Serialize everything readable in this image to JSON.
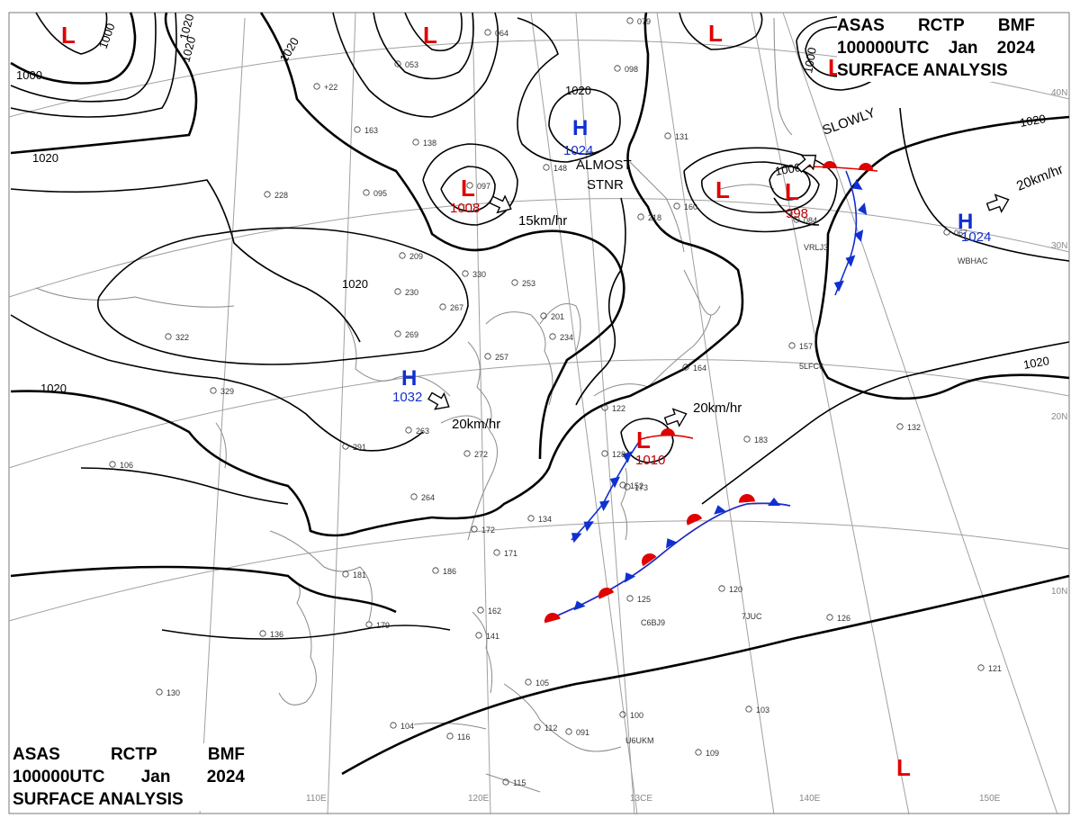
{
  "title": {
    "line1": [
      "ASAS",
      "RCTP",
      "BMF"
    ],
    "line2": [
      "100000UTC",
      "Jan",
      "2024"
    ],
    "line3": "SURFACE ANALYSIS"
  },
  "grid_labels": {
    "lon": [
      "110E",
      "120E",
      "13CE",
      "140E",
      "150E"
    ],
    "lat": [
      "40N",
      "30N",
      "20N",
      "10N"
    ]
  },
  "isobar_labels": [
    "1000",
    "1020",
    "1000",
    "1020",
    "1020",
    "1020",
    "1020",
    "1020",
    "1000",
    "1020",
    "1000",
    "1020",
    "1020"
  ],
  "lows": [
    {
      "symbol": "L",
      "value": ""
    },
    {
      "symbol": "L",
      "value": ""
    },
    {
      "symbol": "L",
      "value": ""
    },
    {
      "symbol": "L",
      "value": ""
    },
    {
      "symbol": "L",
      "value": "1008"
    },
    {
      "symbol": "L",
      "value": ""
    },
    {
      "symbol": "L",
      "value": "998"
    },
    {
      "symbol": "L",
      "value": "1010"
    },
    {
      "symbol": "L",
      "value": ""
    }
  ],
  "highs": [
    {
      "symbol": "H",
      "value": "1024"
    },
    {
      "symbol": "H",
      "value": "1032"
    },
    {
      "symbol": "H",
      "value": "1024"
    }
  ],
  "motion_labels": [
    "15km/hr",
    "20km/hr",
    "20km/hr",
    "20km/hr",
    "ALMOST",
    "STNR",
    "SLOWLY"
  ],
  "station_samples": [
    "053",
    "+22",
    "163",
    "138",
    "097",
    "095",
    "228",
    "209",
    "230",
    "330",
    "253",
    "267",
    "269",
    "322",
    "329",
    "263",
    "291",
    "272",
    "264",
    "257",
    "201",
    "234",
    "218",
    "160",
    "084",
    "067",
    "157",
    "164",
    "132",
    "183",
    "173",
    "152",
    "122",
    "128",
    "134",
    "171",
    "172",
    "186",
    "181",
    "179",
    "162",
    "141",
    "105",
    "125",
    "120",
    "126",
    "121",
    "103",
    "100",
    "109",
    "091",
    "112",
    "116",
    "115",
    "104",
    "136",
    "130",
    "106",
    "079",
    "064",
    "098",
    "131",
    "148",
    "VRLJ3",
    "WBHAC",
    "5LFC6",
    "C6BJ9",
    "7JUC",
    "U6UKM"
  ],
  "colors": {
    "low": "#e00000",
    "high": "#1030d0",
    "warm_front": "#e00000",
    "cold_front": "#1030d0",
    "isobar": "#000000",
    "coast": "#8a8a8a",
    "grid": "#a0a0a0"
  },
  "icons": {
    "low": "letter-L",
    "high": "letter-H",
    "motion": "outline-arrow-icon",
    "station": "station-circle-icon"
  }
}
